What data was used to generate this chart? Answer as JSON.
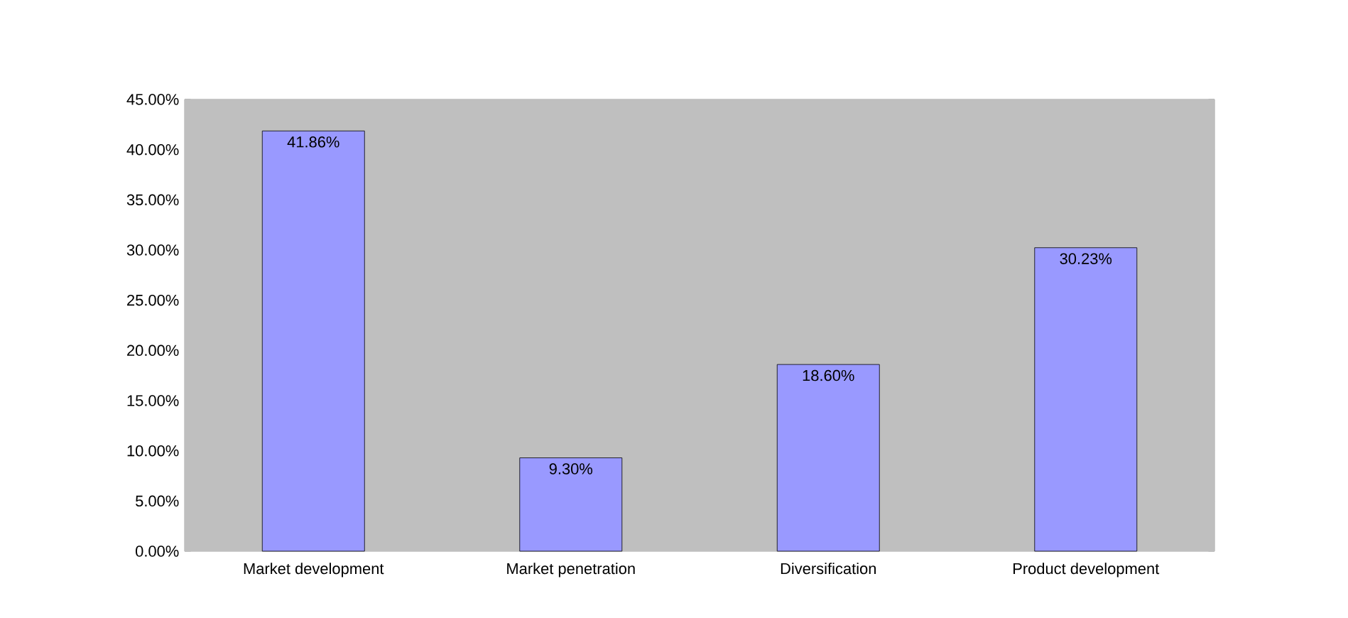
{
  "chart_data": {
    "type": "bar",
    "categories": [
      "Market development",
      "Market penetration",
      "Diversification",
      "Product development"
    ],
    "values": [
      41.86,
      9.3,
      18.6,
      30.23
    ],
    "value_labels": [
      "41.86%",
      "9.30%",
      "18.60%",
      "30.23%"
    ],
    "color": "#9999ff",
    "ylim": [
      0,
      45
    ],
    "yticks": [
      {
        "value": 0,
        "label": "0.00%"
      },
      {
        "value": 5,
        "label": "5.00%"
      },
      {
        "value": 10,
        "label": "10.00%"
      },
      {
        "value": 15,
        "label": "15.00%"
      },
      {
        "value": 20,
        "label": "20.00%"
      },
      {
        "value": 25,
        "label": "25.00%"
      },
      {
        "value": 30,
        "label": "30.00%"
      },
      {
        "value": 35,
        "label": "35.00%"
      },
      {
        "value": 40,
        "label": "40.00%"
      },
      {
        "value": 45,
        "label": "45.00%"
      }
    ]
  }
}
